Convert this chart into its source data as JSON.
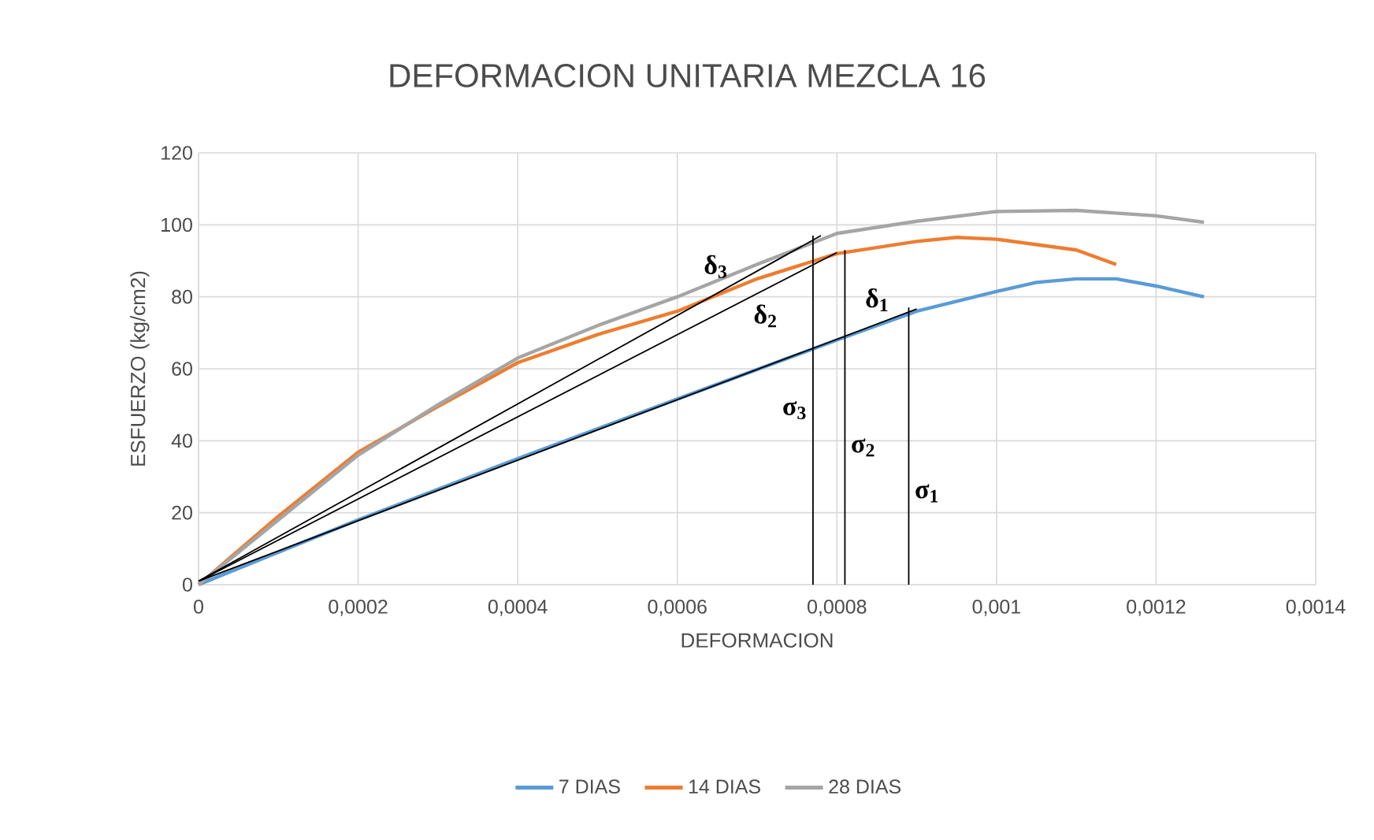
{
  "chart_data": {
    "type": "line",
    "title": "DEFORMACION UNITARIA MEZCLA 16",
    "xlabel": "DEFORMACION",
    "ylabel": "ESFUERZO  (kg/cm2)",
    "xlim": [
      0,
      0.0014
    ],
    "ylim": [
      0,
      120
    ],
    "xticks": [
      0,
      {
        "value": 0.0002,
        "label": "0,0002"
      },
      {
        "value": 0.0004,
        "label": "0,0004"
      },
      {
        "value": 0.0006,
        "label": "0,0006"
      },
      {
        "value": 0.0008,
        "label": "0,0008"
      },
      {
        "value": 0.001,
        "label": "0,001"
      },
      {
        "value": 0.0012,
        "label": "0,0012"
      },
      {
        "value": 0.0014,
        "label": "0,0014"
      }
    ],
    "yticks": [
      0,
      20,
      40,
      60,
      80,
      100,
      120
    ],
    "grid": true,
    "legend": "bottom",
    "marker": "none",
    "line_style": "solid",
    "series": [
      {
        "name": "7 DIAS",
        "color": "#5b9bd5",
        "x": [
          0,
          0.0002,
          0.0004,
          0.0006,
          0.0008,
          0.0009,
          0.001,
          0.00105,
          0.0011,
          0.00115,
          0.0012,
          0.00126
        ],
        "values": [
          0,
          18,
          35,
          51.6,
          68,
          76,
          81.5,
          84,
          85,
          85,
          83,
          80
        ]
      },
      {
        "name": "14 DIAS",
        "color": "#ed7d31",
        "x": [
          0,
          0.0001,
          0.0002,
          0.0003,
          0.0004,
          0.0005,
          0.0006,
          0.0007,
          0.0008,
          0.0009,
          0.00095,
          0.001,
          0.0011,
          0.00115
        ],
        "values": [
          0,
          19,
          36.8,
          49.5,
          61.7,
          69.5,
          76,
          85,
          92,
          95.4,
          96.5,
          96,
          93,
          89
        ]
      },
      {
        "name": "28 DIAS",
        "color": "#a5a5a5",
        "x": [
          0,
          0.0001,
          0.0002,
          0.0003,
          0.0004,
          0.0005,
          0.0006,
          0.0007,
          0.0008,
          0.0009,
          0.001,
          0.0011,
          0.0012,
          0.00126
        ],
        "values": [
          0,
          18,
          36,
          50,
          63,
          72,
          80,
          89,
          97.6,
          101,
          103.7,
          104,
          102.5,
          100.7
        ]
      },
      {
        "type": "line",
        "name": "δ$_{1}$",
        "color": "#000000",
        "x": [
          0,
          0.0009
        ],
        "values": [
          1,
          76.6
        ]
      },
      {
        "type": "line",
        "name": "δ$_{2}$",
        "color": "#000000",
        "x": [
          0,
          0.0008
        ],
        "values": [
          1,
          92.3
        ]
      },
      {
        "type": "line",
        "name": "δ$_{3}$",
        "color": "#000000",
        "x": [
          0,
          0.00078
        ],
        "values": [
          1,
          97
        ]
      },
      {
        "type": "line",
        "name": "σ$_{1}$",
        "color": "#000000",
        "x": [
          0.00089,
          0.00089
        ],
        "values": [
          0,
          77
        ]
      },
      {
        "type": "line",
        "name": "σ$_{2}$",
        "color": "#000000",
        "x": [
          0.00081,
          0.00081
        ],
        "values": [
          0,
          93
        ]
      },
      {
        "type": "line",
        "name": "σ$_{3}$",
        "color": "#000000",
        "x": [
          0.00077,
          0.00077
        ],
        "values": [
          0,
          97
        ]
      }
    ]
  }
}
